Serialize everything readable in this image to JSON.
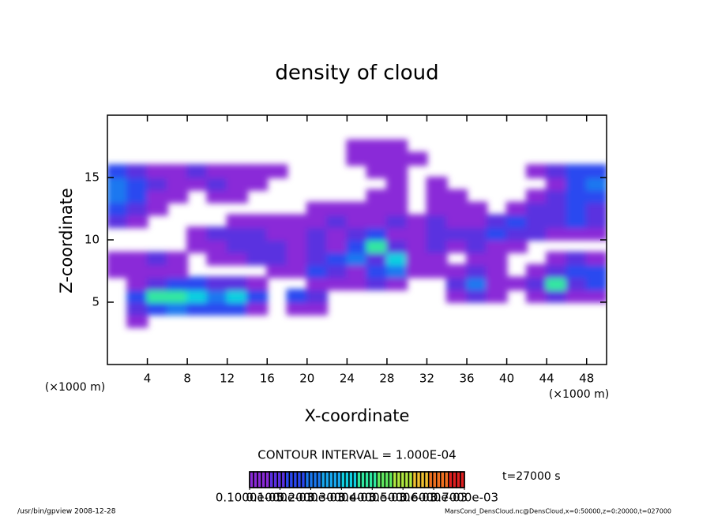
{
  "chart_data": {
    "type": "contour",
    "title": "density of cloud",
    "xlabel": "X-coordinate",
    "ylabel": "Z-coordinate",
    "xunit_left": "(×1000 m)",
    "xunit_right": "(×1000 m)",
    "contour_note": "CONTOUR INTERVAL = 1.000E-04",
    "time_note": "t=27000 s",
    "footer_left": "/usr/bin/gpview  2008-12-28",
    "footer_right": "MarsCond_DensCloud.nc@DensCloud,x=0:50000,z=0:20000,t=027000",
    "xlim": [
      0,
      50
    ],
    "ylim": [
      0,
      20
    ],
    "xticks": [
      4,
      8,
      12,
      16,
      20,
      24,
      28,
      32,
      36,
      40,
      44,
      48
    ],
    "yticks": [
      5,
      10,
      15
    ],
    "colors": [
      "#8a2ad8",
      "#5a30e0",
      "#2a48f0",
      "#1a78f0",
      "#18a8f0",
      "#10d0e0",
      "#30e8a0",
      "#60e860",
      "#b0e840",
      "#f0c030",
      "#f07020",
      "#e02020"
    ],
    "colorbar_ticks": [
      {
        "value": 1e-06,
        "label": "0.1000e-05"
      },
      {
        "value": 0.0001,
        "label": "0.1000e-03"
      },
      {
        "value": 0.0002,
        "label": "0.2000e-03"
      },
      {
        "value": 0.0003,
        "label": "0.3000e-03"
      },
      {
        "value": 0.0004,
        "label": "0.4000e-03"
      },
      {
        "value": 0.0005,
        "label": "0.5000e-03"
      },
      {
        "value": 0.0006,
        "label": "0.6000e-03"
      },
      {
        "value": 0.0007,
        "label": "0.7000e-03"
      }
    ],
    "x": [
      1,
      3,
      5,
      7,
      9,
      11,
      13,
      15,
      17,
      19,
      21,
      23,
      25,
      27,
      29,
      31,
      33,
      35,
      37,
      39,
      41,
      43,
      45,
      47,
      49
    ],
    "y": [
      0.5,
      1.5,
      2.5,
      3.5,
      4.5,
      5.5,
      6.5,
      7.5,
      8.5,
      9.5,
      10.5,
      11.5,
      12.5,
      13.5,
      14.5,
      15.5,
      16.5,
      17.5,
      18.5,
      19.5
    ],
    "z": [
      [
        0,
        0,
        0,
        0,
        0,
        0,
        0,
        0,
        0,
        0,
        0,
        0,
        0,
        0,
        0,
        0,
        0,
        0,
        0,
        0,
        0,
        0,
        0,
        0,
        0
      ],
      [
        0,
        0,
        0,
        0,
        0,
        0,
        0,
        0,
        0,
        0,
        0,
        0,
        0,
        0,
        0,
        0,
        0,
        0,
        0,
        0,
        0,
        0,
        0,
        0,
        0
      ],
      [
        0,
        0,
        0,
        0,
        0,
        0,
        0,
        0,
        0,
        0,
        0,
        0,
        0,
        0,
        0,
        0,
        0,
        0,
        0,
        0,
        0,
        0,
        0,
        0,
        0
      ],
      [
        0,
        4e-05,
        0,
        0,
        0,
        0,
        0,
        0,
        0,
        0,
        0,
        0,
        0,
        0,
        0,
        0,
        0,
        0,
        0,
        0,
        0,
        0,
        0,
        0,
        0
      ],
      [
        0,
        8e-05,
        0.00014,
        0.0002,
        0.00014,
        0.00014,
        0.00014,
        4e-05,
        0,
        4e-05,
        4e-05,
        0,
        0,
        0,
        0,
        0,
        0,
        0,
        0,
        0,
        0,
        0,
        0,
        0,
        0
      ],
      [
        0,
        0.00014,
        0.00038,
        0.00038,
        0.0003,
        0.0002,
        0.0003,
        0.00014,
        0,
        0.00014,
        8e-05,
        0,
        0,
        0,
        0,
        0,
        0,
        4e-05,
        8e-05,
        4e-05,
        0,
        4e-05,
        8e-05,
        4e-05,
        4e-05
      ],
      [
        0,
        4e-05,
        8e-05,
        0.00014,
        0.00014,
        8e-05,
        8e-05,
        4e-05,
        0,
        0,
        4e-05,
        4e-05,
        4e-05,
        8e-05,
        4e-05,
        0,
        0,
        8e-05,
        0.0002,
        4e-05,
        4e-05,
        8e-05,
        0.00038,
        8e-05,
        0.00014
      ],
      [
        4e-05,
        4e-05,
        4e-05,
        4e-05,
        0,
        0,
        0,
        0,
        4e-05,
        4e-05,
        0.00014,
        8e-05,
        4e-05,
        0.00014,
        0.0002,
        4e-05,
        4e-05,
        4e-05,
        8e-05,
        4e-05,
        0,
        4e-05,
        8e-05,
        0.00014,
        0.00014
      ],
      [
        4e-05,
        4e-05,
        8e-05,
        4e-05,
        0,
        4e-05,
        4e-05,
        8e-05,
        8e-05,
        4e-05,
        8e-05,
        0.00014,
        0.0002,
        8e-05,
        0.0003,
        4e-05,
        4e-05,
        0,
        4e-05,
        4e-05,
        0,
        0,
        4e-05,
        8e-05,
        4e-05
      ],
      [
        0,
        0,
        0,
        0,
        4e-05,
        4e-05,
        8e-05,
        8e-05,
        8e-05,
        4e-05,
        8e-05,
        4e-05,
        0.00014,
        0.00038,
        8e-05,
        4e-05,
        8e-05,
        4e-05,
        8e-05,
        4e-05,
        4e-05,
        0,
        0,
        0,
        0
      ],
      [
        0,
        0,
        0,
        0,
        4e-05,
        8e-05,
        8e-05,
        8e-05,
        4e-05,
        4e-05,
        8e-05,
        4e-05,
        8e-05,
        0.00014,
        4e-05,
        4e-05,
        8e-05,
        8e-05,
        8e-05,
        0.00014,
        8e-05,
        8e-05,
        4e-05,
        4e-05,
        4e-05
      ],
      [
        8e-05,
        4e-05,
        0,
        0,
        0,
        0,
        4e-05,
        4e-05,
        4e-05,
        4e-05,
        4e-05,
        8e-05,
        4e-05,
        4e-05,
        8e-05,
        4e-05,
        8e-05,
        4e-05,
        4e-05,
        8e-05,
        0.00014,
        8e-05,
        8e-05,
        0.00014,
        8e-05
      ],
      [
        0.00014,
        8e-05,
        4e-05,
        0,
        0,
        0,
        0,
        0,
        0,
        0,
        4e-05,
        4e-05,
        4e-05,
        4e-05,
        4e-05,
        0,
        4e-05,
        4e-05,
        4e-05,
        0,
        4e-05,
        8e-05,
        8e-05,
        0.00014,
        8e-05
      ],
      [
        0.0002,
        0.00014,
        4e-05,
        4e-05,
        0,
        4e-05,
        4e-05,
        0,
        0,
        0,
        0,
        0,
        0,
        4e-05,
        4e-05,
        0,
        4e-05,
        4e-05,
        0,
        0,
        0,
        4e-05,
        8e-05,
        0.00014,
        0.00014
      ],
      [
        0.0002,
        0.00014,
        8e-05,
        4e-05,
        4e-05,
        8e-05,
        4e-05,
        4e-05,
        0,
        0,
        0,
        0,
        0,
        0,
        4e-05,
        0,
        4e-05,
        0,
        0,
        0,
        0,
        0,
        4e-05,
        0.00014,
        0.0002
      ],
      [
        0.00014,
        8e-05,
        4e-05,
        4e-05,
        8e-05,
        4e-05,
        4e-05,
        4e-05,
        4e-05,
        0,
        0,
        0,
        0,
        4e-05,
        4e-05,
        0,
        0,
        0,
        0,
        0,
        0,
        4e-05,
        8e-05,
        0.00014,
        0.00014
      ],
      [
        0,
        0,
        0,
        0,
        0,
        0,
        0,
        0,
        0,
        0,
        0,
        0,
        4e-05,
        4e-05,
        4e-05,
        4e-05,
        0,
        0,
        0,
        0,
        0,
        0,
        0,
        0,
        0
      ],
      [
        0,
        0,
        0,
        0,
        0,
        0,
        0,
        0,
        0,
        0,
        0,
        0,
        4e-05,
        4e-05,
        4e-05,
        0,
        0,
        0,
        0,
        0,
        0,
        0,
        0,
        0,
        0
      ],
      [
        0,
        0,
        0,
        0,
        0,
        0,
        0,
        0,
        0,
        0,
        0,
        0,
        0,
        0,
        0,
        0,
        0,
        0,
        0,
        0,
        0,
        0,
        0,
        0,
        0
      ],
      [
        0,
        0,
        0,
        0,
        0,
        0,
        0,
        0,
        0,
        0,
        0,
        0,
        0,
        0,
        0,
        0,
        0,
        0,
        0,
        0,
        0,
        0,
        0,
        0,
        0
      ]
    ]
  }
}
